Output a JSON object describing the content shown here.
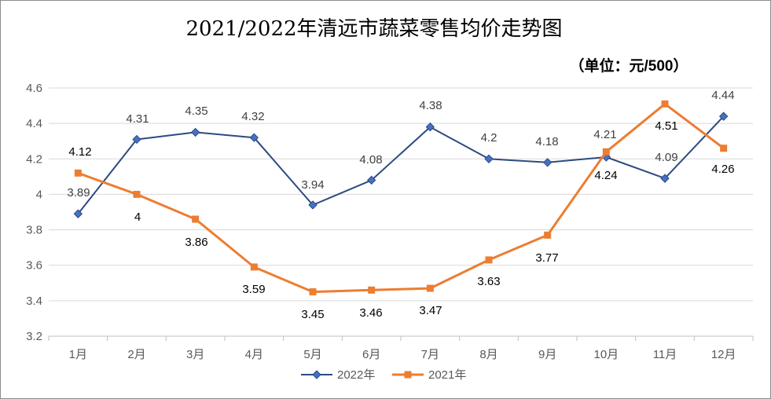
{
  "chart_data": {
    "type": "line",
    "title": "2021/2022年清远市蔬菜零售均价走势图",
    "unit_note": "（单位：元/500）",
    "categories": [
      "1月",
      "2月",
      "3月",
      "4月",
      "5月",
      "6月",
      "7月",
      "8月",
      "9月",
      "10月",
      "11月",
      "12月"
    ],
    "y_ticks": [
      "3.2",
      "3.4",
      "3.6",
      "3.8",
      "4",
      "4.2",
      "4.4",
      "4.6"
    ],
    "ylim": [
      3.2,
      4.6
    ],
    "grid": true,
    "legend_position": "bottom",
    "series": [
      {
        "name": "2022年",
        "color": "#2e4a7f",
        "marker": "diamond",
        "values": [
          3.89,
          4.31,
          4.35,
          4.32,
          3.94,
          4.08,
          4.38,
          4.2,
          4.18,
          4.21,
          4.09,
          4.44
        ],
        "labels": [
          "3.89",
          "4.31",
          "4.35",
          "4.32",
          "3.94",
          "4.08",
          "4.38",
          "4.2",
          "4.18",
          "4.21",
          "4.09",
          "4.44"
        ]
      },
      {
        "name": "2021年",
        "color": "#ed7d31",
        "marker": "square",
        "values": [
          4.12,
          4.0,
          3.86,
          3.59,
          3.45,
          3.46,
          3.47,
          3.63,
          3.77,
          4.24,
          4.51,
          4.26
        ],
        "labels": [
          "4.12",
          "4",
          "3.86",
          "3.59",
          "3.45",
          "3.46",
          "3.47",
          "3.63",
          "3.77",
          "4.24",
          "4.51",
          "4.26"
        ]
      }
    ]
  }
}
